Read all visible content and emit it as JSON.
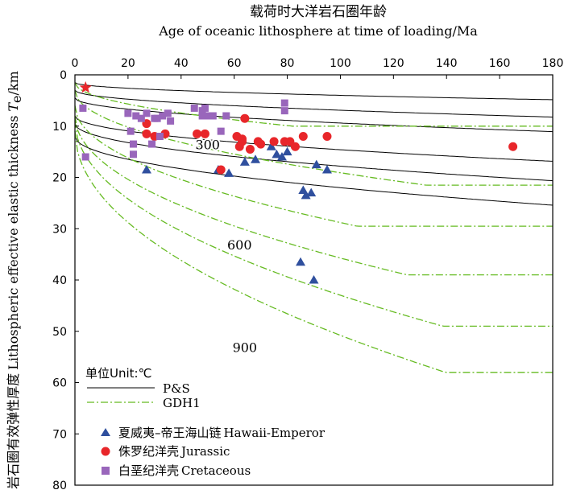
{
  "chart_data": {
    "type": "scatter",
    "title_cn": "载荷时大洋岩石圈年龄",
    "title_en": "Age of oceanic lithosphere at time of loading/Ma",
    "ylabel_cn": "岩石圈有效弹性厚度",
    "ylabel_en": "Lithospheric effective elastic thickness",
    "ylabel_symbol": "T",
    "ylabel_sub": "e",
    "ylabel_unit": "/km",
    "xlim": [
      0,
      180
    ],
    "ylim": [
      0,
      80
    ],
    "x_ticks": [
      0,
      20,
      40,
      60,
      80,
      100,
      120,
      140,
      160,
      180
    ],
    "y_ticks": [
      0,
      10,
      20,
      30,
      40,
      50,
      60,
      70,
      80
    ],
    "isotherm_labels": [
      {
        "text": "300",
        "x": 50,
        "y": 14.5
      },
      {
        "text": "600",
        "x": 62,
        "y": 34
      },
      {
        "text": "900",
        "x": 64,
        "y": 54
      }
    ],
    "units_label": "单位Unit:℃",
    "legend_lines": [
      {
        "name": "P&S",
        "style": "solid",
        "color": "#000000"
      },
      {
        "name": "GDH1",
        "style": "dashdot",
        "color": "#66bb22"
      }
    ],
    "legend_markers": [
      {
        "name_cn": "夏威夷–帝王海山链",
        "name_en": "Hawaii-Emperor",
        "marker": "triangle",
        "color": "#2f4f9e"
      },
      {
        "name_cn": "侏罗纪洋壳",
        "name_en": "Jurassic",
        "marker": "circle",
        "color": "#e8262a"
      },
      {
        "name_cn": "白垩纪洋壳",
        "name_en": "Cretaceous",
        "marker": "square",
        "color": "#9966bb"
      }
    ],
    "curves_ps": [
      {
        "coef": 0.25,
        "offset": 1.5
      },
      {
        "coef": 0.39,
        "offset": 3.0
      },
      {
        "coef": 0.49,
        "offset": 4.5
      },
      {
        "coef": 0.66,
        "offset": 8.0
      },
      {
        "coef": 0.83,
        "offset": 9.5
      },
      {
        "coef": 1.0,
        "offset": 12.0
      }
    ],
    "curves_gdh1": [
      {
        "coef": 0.21,
        "offset": 1.5,
        "sat": 10
      },
      {
        "coef": 0.36,
        "offset": 3.0,
        "sat": 21.5
      },
      {
        "coef": 0.51,
        "offset": 6.0,
        "sat": 29.5
      },
      {
        "coef": 0.62,
        "offset": 8.0,
        "sat": 39
      },
      {
        "coef": 0.76,
        "offset": 9.0,
        "sat": 49
      },
      {
        "coef": 0.89,
        "offset": 11.0,
        "sat": 58
      }
    ],
    "star": {
      "x": 4,
      "y": 2.5,
      "color": "#e8262a"
    },
    "series": [
      {
        "name": "Hawaii-Emperor",
        "marker": "triangle",
        "color": "#2f4f9e",
        "points": [
          [
            27,
            18.5
          ],
          [
            54,
            18.5
          ],
          [
            58,
            19.2
          ],
          [
            64,
            17
          ],
          [
            68,
            16.5
          ],
          [
            74,
            14
          ],
          [
            76,
            15.5
          ],
          [
            78,
            16
          ],
          [
            80,
            15
          ],
          [
            85,
            36.5
          ],
          [
            86,
            22.5
          ],
          [
            87,
            23.5
          ],
          [
            89,
            23
          ],
          [
            90,
            40
          ],
          [
            91,
            17.5
          ],
          [
            95,
            18.5
          ]
        ]
      },
      {
        "name": "Jurassic",
        "marker": "circle",
        "color": "#e8262a",
        "points": [
          [
            27,
            9.5
          ],
          [
            27,
            11.5
          ],
          [
            30,
            12
          ],
          [
            34,
            11.5
          ],
          [
            46,
            11.5
          ],
          [
            49,
            11.5
          ],
          [
            55,
            18.5
          ],
          [
            61,
            12
          ],
          [
            62,
            14
          ],
          [
            63,
            13
          ],
          [
            63,
            12.5
          ],
          [
            64,
            8.5
          ],
          [
            66,
            14.5
          ],
          [
            69,
            13
          ],
          [
            70,
            13.5
          ],
          [
            75,
            13
          ],
          [
            79,
            13
          ],
          [
            81,
            13
          ],
          [
            83,
            14
          ],
          [
            86,
            12
          ],
          [
            95,
            12
          ],
          [
            165,
            14
          ]
        ]
      },
      {
        "name": "Cretaceous",
        "marker": "square",
        "color": "#9966bb",
        "points": [
          [
            3,
            6.5
          ],
          [
            4,
            16
          ],
          [
            20,
            7.5
          ],
          [
            21,
            11
          ],
          [
            22,
            13.5
          ],
          [
            22,
            15.5
          ],
          [
            23,
            8
          ],
          [
            25,
            8.5
          ],
          [
            27,
            7.5
          ],
          [
            29,
            13.5
          ],
          [
            30,
            8.5
          ],
          [
            31,
            8.5
          ],
          [
            32,
            12
          ],
          [
            33,
            8
          ],
          [
            35,
            7.5
          ],
          [
            36,
            9
          ],
          [
            45,
            6.5
          ],
          [
            48,
            7
          ],
          [
            48,
            8
          ],
          [
            49,
            6.5
          ],
          [
            50,
            8
          ],
          [
            52,
            8
          ],
          [
            55,
            11
          ],
          [
            57,
            8
          ],
          [
            79,
            5.5
          ],
          [
            79,
            7
          ]
        ]
      }
    ]
  }
}
